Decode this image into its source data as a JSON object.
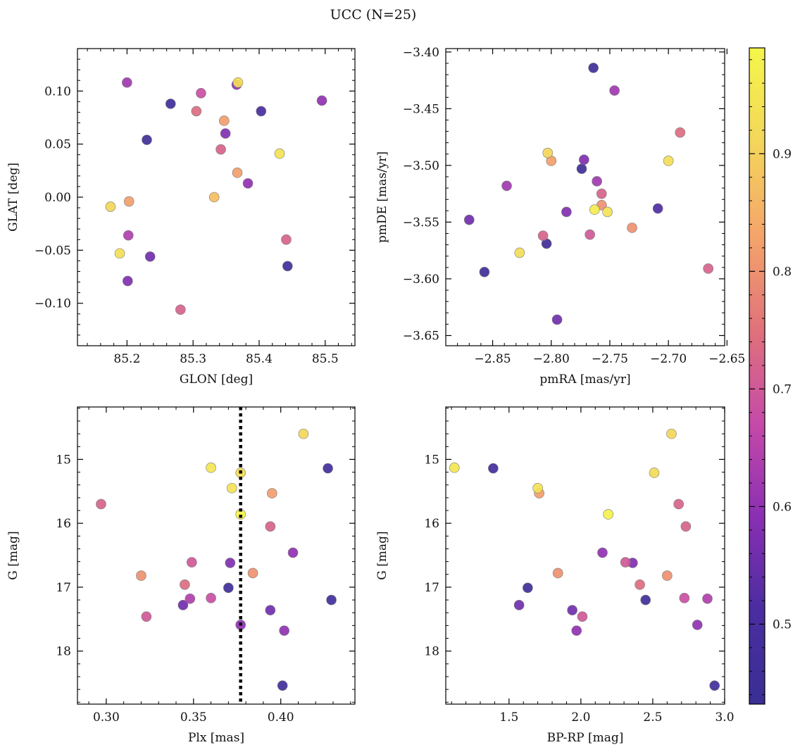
{
  "title": "UCC (N=25)",
  "colors": {
    "marker_edge": "#7a7a7a",
    "reference_line": "#000000",
    "colormap": [
      "#3a2f94",
      "#4a2da0",
      "#8a2fb3",
      "#c64aa8",
      "#e0727a",
      "#f5a56a",
      "#f3d65a",
      "#f4f64a"
    ]
  },
  "colorbar": {
    "range": [
      0.432,
      0.99
    ],
    "ticks": [
      0.5,
      0.6,
      0.7,
      0.8,
      0.9
    ],
    "tick_labels": [
      "0.5",
      "0.6",
      "0.7",
      "0.8",
      "0.9"
    ]
  },
  "chart_data": [
    {
      "type": "scatter",
      "xlabel": "GLON [deg]",
      "ylabel": "GLAT [deg]",
      "xlim": [
        85.125,
        85.545
      ],
      "ylim": [
        -0.14,
        0.14
      ],
      "y_inverted": false,
      "xticks": [
        85.2,
        85.3,
        85.4,
        85.5
      ],
      "xtick_labels": [
        "85.2",
        "85.3",
        "85.4",
        "85.5"
      ],
      "yticks": [
        -0.1,
        -0.05,
        0.0,
        0.05,
        0.1
      ],
      "ytick_labels": [
        "−0.10",
        "−0.05",
        "0.00",
        "0.05",
        "0.10"
      ],
      "points": [
        {
          "x": 85.2,
          "y": 0.108,
          "c": 0.62
        },
        {
          "x": 85.266,
          "y": 0.088,
          "c": 0.45
        },
        {
          "x": 85.312,
          "y": 0.098,
          "c": 0.68
        },
        {
          "x": 85.366,
          "y": 0.106,
          "c": 0.6
        },
        {
          "x": 85.368,
          "y": 0.108,
          "c": 0.93
        },
        {
          "x": 85.305,
          "y": 0.081,
          "c": 0.74
        },
        {
          "x": 85.347,
          "y": 0.072,
          "c": 0.82
        },
        {
          "x": 85.403,
          "y": 0.081,
          "c": 0.5
        },
        {
          "x": 85.495,
          "y": 0.091,
          "c": 0.6
        },
        {
          "x": 85.349,
          "y": 0.06,
          "c": 0.58
        },
        {
          "x": 85.23,
          "y": 0.054,
          "c": 0.46
        },
        {
          "x": 85.342,
          "y": 0.045,
          "c": 0.72
        },
        {
          "x": 85.431,
          "y": 0.041,
          "c": 0.94
        },
        {
          "x": 85.367,
          "y": 0.023,
          "c": 0.82
        },
        {
          "x": 85.383,
          "y": 0.013,
          "c": 0.6
        },
        {
          "x": 85.332,
          "y": 0.0,
          "c": 0.87
        },
        {
          "x": 85.203,
          "y": -0.004,
          "c": 0.82
        },
        {
          "x": 85.175,
          "y": -0.009,
          "c": 0.91
        },
        {
          "x": 85.202,
          "y": -0.036,
          "c": 0.64
        },
        {
          "x": 85.441,
          "y": -0.04,
          "c": 0.72
        },
        {
          "x": 85.189,
          "y": -0.053,
          "c": 0.93
        },
        {
          "x": 85.235,
          "y": -0.056,
          "c": 0.56
        },
        {
          "x": 85.443,
          "y": -0.065,
          "c": 0.47
        },
        {
          "x": 85.201,
          "y": -0.079,
          "c": 0.58
        },
        {
          "x": 85.281,
          "y": -0.106,
          "c": 0.72
        }
      ]
    },
    {
      "type": "scatter",
      "xlabel": "pmRA [mas/yr]",
      "ylabel": "pmDE [mas/yr]",
      "xlim": [
        -2.89,
        -2.652
      ],
      "ylim": [
        -3.659,
        -3.397
      ],
      "y_inverted": false,
      "xticks": [
        -2.85,
        -2.8,
        -2.75,
        -2.7,
        -2.65
      ],
      "xtick_labels": [
        "−2.85",
        "−2.80",
        "−2.75",
        "−2.70",
        "−2.65"
      ],
      "yticks": [
        -3.65,
        -3.6,
        -3.55,
        -3.5,
        -3.45,
        -3.4
      ],
      "ytick_labels": [
        "−3.65",
        "−3.60",
        "−3.55",
        "−3.50",
        "−3.45",
        "−3.40"
      ],
      "points": [
        {
          "x": -2.764,
          "y": -3.414,
          "c": 0.46
        },
        {
          "x": -2.746,
          "y": -3.434,
          "c": 0.62
        },
        {
          "x": -2.69,
          "y": -3.471,
          "c": 0.74
        },
        {
          "x": -2.803,
          "y": -3.489,
          "c": 0.91
        },
        {
          "x": -2.8,
          "y": -3.496,
          "c": 0.82
        },
        {
          "x": -2.772,
          "y": -3.495,
          "c": 0.58
        },
        {
          "x": -2.774,
          "y": -3.503,
          "c": 0.46
        },
        {
          "x": -2.7,
          "y": -3.496,
          "c": 0.93
        },
        {
          "x": -2.761,
          "y": -3.514,
          "c": 0.62
        },
        {
          "x": -2.838,
          "y": -3.518,
          "c": 0.62
        },
        {
          "x": -2.757,
          "y": -3.525,
          "c": 0.72
        },
        {
          "x": -2.757,
          "y": -3.535,
          "c": 0.8
        },
        {
          "x": -2.763,
          "y": -3.539,
          "c": 0.96
        },
        {
          "x": -2.752,
          "y": -3.541,
          "c": 0.94
        },
        {
          "x": -2.787,
          "y": -3.541,
          "c": 0.58
        },
        {
          "x": -2.709,
          "y": -3.538,
          "c": 0.52
        },
        {
          "x": -2.731,
          "y": -3.555,
          "c": 0.8
        },
        {
          "x": -2.87,
          "y": -3.548,
          "c": 0.56
        },
        {
          "x": -2.807,
          "y": -3.562,
          "c": 0.72
        },
        {
          "x": -2.767,
          "y": -3.561,
          "c": 0.7
        },
        {
          "x": -2.804,
          "y": -3.569,
          "c": 0.46
        },
        {
          "x": -2.827,
          "y": -3.577,
          "c": 0.93
        },
        {
          "x": -2.666,
          "y": -3.591,
          "c": 0.72
        },
        {
          "x": -2.857,
          "y": -3.594,
          "c": 0.46
        },
        {
          "x": -2.795,
          "y": -3.636,
          "c": 0.56
        }
      ]
    },
    {
      "type": "scatter",
      "xlabel": "Plx [mas]",
      "ylabel": "G [mag]",
      "xlim": [
        0.2835,
        0.4425
      ],
      "ylim": [
        14.18,
        18.83
      ],
      "y_inverted": true,
      "xticks": [
        0.3,
        0.35,
        0.4
      ],
      "xtick_labels": [
        "0.30",
        "0.35",
        "0.40"
      ],
      "yticks": [
        15,
        16,
        17,
        18
      ],
      "ytick_labels": [
        "15",
        "16",
        "17",
        "18"
      ],
      "reference_line": {
        "x": 0.377,
        "style": "dotted"
      },
      "points": [
        {
          "x": 0.413,
          "y": 14.6,
          "c": 0.91
        },
        {
          "x": 0.36,
          "y": 15.13,
          "c": 0.95
        },
        {
          "x": 0.427,
          "y": 15.14,
          "c": 0.47
        },
        {
          "x": 0.377,
          "y": 15.21,
          "c": 0.92
        },
        {
          "x": 0.372,
          "y": 15.45,
          "c": 0.94
        },
        {
          "x": 0.395,
          "y": 15.53,
          "c": 0.82
        },
        {
          "x": 0.297,
          "y": 15.7,
          "c": 0.72
        },
        {
          "x": 0.377,
          "y": 15.86,
          "c": 0.98
        },
        {
          "x": 0.394,
          "y": 16.05,
          "c": 0.72
        },
        {
          "x": 0.407,
          "y": 16.46,
          "c": 0.6
        },
        {
          "x": 0.349,
          "y": 16.61,
          "c": 0.7
        },
        {
          "x": 0.371,
          "y": 16.62,
          "c": 0.58
        },
        {
          "x": 0.384,
          "y": 16.78,
          "c": 0.8
        },
        {
          "x": 0.32,
          "y": 16.82,
          "c": 0.8
        },
        {
          "x": 0.345,
          "y": 16.96,
          "c": 0.74
        },
        {
          "x": 0.37,
          "y": 17.01,
          "c": 0.46
        },
        {
          "x": 0.36,
          "y": 17.17,
          "c": 0.68
        },
        {
          "x": 0.348,
          "y": 17.18,
          "c": 0.64
        },
        {
          "x": 0.429,
          "y": 17.2,
          "c": 0.47
        },
        {
          "x": 0.344,
          "y": 17.28,
          "c": 0.56
        },
        {
          "x": 0.394,
          "y": 17.36,
          "c": 0.56
        },
        {
          "x": 0.323,
          "y": 17.46,
          "c": 0.7
        },
        {
          "x": 0.377,
          "y": 17.59,
          "c": 0.6
        },
        {
          "x": 0.402,
          "y": 17.68,
          "c": 0.6
        },
        {
          "x": 0.401,
          "y": 18.54,
          "c": 0.47
        }
      ]
    },
    {
      "type": "scatter",
      "xlabel": "BP-RP [mag]",
      "ylabel": "G [mag]",
      "xlim": [
        1.06,
        3.0
      ],
      "ylim": [
        14.18,
        18.83
      ],
      "y_inverted": true,
      "xticks": [
        1.5,
        2.0,
        2.5,
        3.0
      ],
      "xtick_labels": [
        "1.5",
        "2.0",
        "2.5",
        "3.0"
      ],
      "yticks": [
        15,
        16,
        17,
        18
      ],
      "ytick_labels": [
        "15",
        "16",
        "17",
        "18"
      ],
      "points": [
        {
          "x": 2.63,
          "y": 14.6,
          "c": 0.91
        },
        {
          "x": 1.12,
          "y": 15.13,
          "c": 0.95
        },
        {
          "x": 1.39,
          "y": 15.14,
          "c": 0.47
        },
        {
          "x": 2.51,
          "y": 15.21,
          "c": 0.92
        },
        {
          "x": 1.7,
          "y": 15.45,
          "c": 0.94
        },
        {
          "x": 1.71,
          "y": 15.53,
          "c": 0.82
        },
        {
          "x": 2.68,
          "y": 15.7,
          "c": 0.72
        },
        {
          "x": 2.19,
          "y": 15.86,
          "c": 0.98
        },
        {
          "x": 2.73,
          "y": 16.05,
          "c": 0.72
        },
        {
          "x": 2.15,
          "y": 16.46,
          "c": 0.6
        },
        {
          "x": 2.31,
          "y": 16.61,
          "c": 0.7
        },
        {
          "x": 2.36,
          "y": 16.62,
          "c": 0.58
        },
        {
          "x": 1.84,
          "y": 16.78,
          "c": 0.8
        },
        {
          "x": 2.6,
          "y": 16.82,
          "c": 0.8
        },
        {
          "x": 2.41,
          "y": 16.96,
          "c": 0.74
        },
        {
          "x": 1.63,
          "y": 17.01,
          "c": 0.46
        },
        {
          "x": 2.72,
          "y": 17.17,
          "c": 0.68
        },
        {
          "x": 2.88,
          "y": 17.18,
          "c": 0.64
        },
        {
          "x": 2.45,
          "y": 17.2,
          "c": 0.47
        },
        {
          "x": 1.57,
          "y": 17.28,
          "c": 0.56
        },
        {
          "x": 1.94,
          "y": 17.36,
          "c": 0.56
        },
        {
          "x": 2.01,
          "y": 17.46,
          "c": 0.7
        },
        {
          "x": 2.81,
          "y": 17.59,
          "c": 0.6
        },
        {
          "x": 1.97,
          "y": 17.68,
          "c": 0.6
        },
        {
          "x": 2.93,
          "y": 18.54,
          "c": 0.47
        }
      ]
    }
  ]
}
